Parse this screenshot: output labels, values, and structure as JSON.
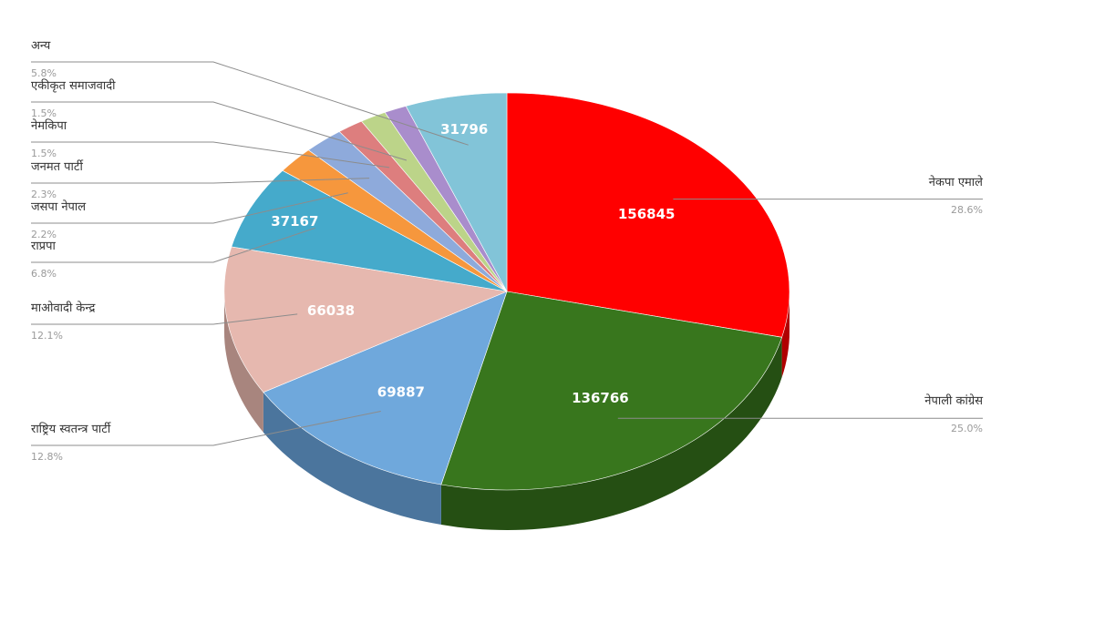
{
  "chart_data": {
    "type": "pie",
    "title": "",
    "three_d": true,
    "slices": [
      {
        "name": "नेकपा एमाले",
        "value": 156845,
        "value_label": "156845",
        "percent_label": "28.6%",
        "color": "#ff0000",
        "side_color": "#b00000"
      },
      {
        "name": "नेपाली कांग्रेस",
        "value": 136766,
        "value_label": "136766",
        "percent_label": "25.0%",
        "color": "#38761d",
        "side_color": "#254f13"
      },
      {
        "name": "राष्ट्रिय स्वतन्त्र पार्टी",
        "value": 69887,
        "value_label": "69887",
        "percent_label": "12.8%",
        "color": "#6fa8dc",
        "side_color": "#4b759d"
      },
      {
        "name": "माओवादी केन्द्र",
        "value": 66038,
        "value_label": "66038",
        "percent_label": "12.1%",
        "color": "#e6b8af",
        "side_color": "#a8857e"
      },
      {
        "name": "राप्रपा",
        "value": 37167,
        "value_label": "37167",
        "percent_label": "6.8%",
        "color": "#45aacb",
        "side_color": "#2f7890"
      },
      {
        "name": "जसपा नेपाल",
        "value": 12000,
        "value_label": "",
        "percent_label": "2.2%",
        "color": "#f6973d",
        "side_color": "#b06a26"
      },
      {
        "name": "जनमत पार्टी",
        "value": 12500,
        "value_label": "",
        "percent_label": "2.3%",
        "color": "#8eaadb",
        "side_color": "#63799e"
      },
      {
        "name": "नेमकिपा",
        "value": 8200,
        "value_label": "",
        "percent_label": "1.5%",
        "color": "#dd7e7e",
        "side_color": "#9e5757"
      },
      {
        "name": "एकीकृत समाजवादी",
        "value": 8200,
        "value_label": "",
        "percent_label": "1.5%",
        "color": "#bcd489",
        "side_color": "#879a60"
      },
      {
        "name": "",
        "value": 7000,
        "value_label": "",
        "percent_label": "",
        "color": "#a98dcc",
        "side_color": "#776494"
      },
      {
        "name": "अन्य",
        "value": 31796,
        "value_label": "31796",
        "percent_label": "5.8%",
        "color": "#82c4d8",
        "side_color": "#5a8c9b"
      }
    ]
  }
}
